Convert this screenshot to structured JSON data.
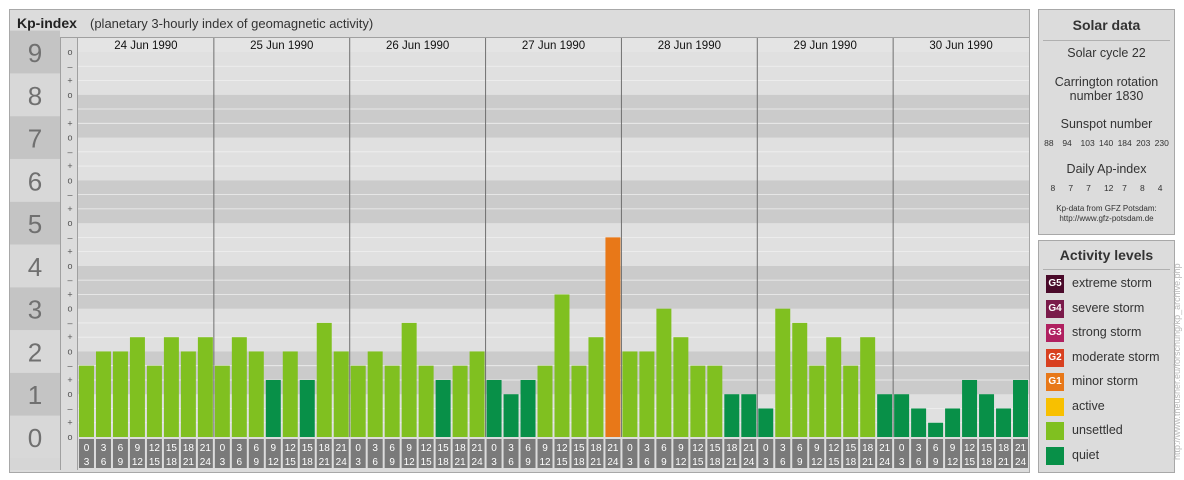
{
  "header": {
    "title": "Kp-index",
    "subtitle": "(planetary 3-hourly index of geomagnetic activity)"
  },
  "side": {
    "solar_title": "Solar data",
    "cycle": "Solar cycle 22",
    "carrington_line1": "Carrington rotation",
    "carrington_line2": "number 1830",
    "sunspot_title": "Sunspot number",
    "sunspot_values": "88  94  103 140 184 203 230",
    "ap_title": "Daily Ap-index",
    "ap_values": "8   7   7   12  7   8   4",
    "credit_line1": "Kp-data from GFZ Potsdam:",
    "credit_line2": "http://www.gfz-potsdam.de",
    "activity_title": "Activity levels",
    "levels": [
      {
        "code": "G5",
        "label": "extreme storm",
        "color": "#4a0a2a"
      },
      {
        "code": "G4",
        "label": "severe storm",
        "color": "#7a1a4a"
      },
      {
        "code": "G3",
        "label": "strong storm",
        "color": "#b02060"
      },
      {
        "code": "G2",
        "label": "moderate storm",
        "color": "#d84020"
      },
      {
        "code": "G1",
        "label": "minor storm",
        "color": "#e87818"
      },
      {
        "code": "",
        "label": "active",
        "color": "#f8c000"
      },
      {
        "code": "",
        "label": "unsettled",
        "color": "#80c020"
      },
      {
        "code": "",
        "label": "quiet",
        "color": "#089048"
      }
    ]
  },
  "watermark": "http://www.theusner.eu/forschung/kp_archive.php",
  "chart_data": {
    "type": "bar",
    "ylim": [
      0,
      9
    ],
    "y_ticks": [
      "0",
      "1",
      "2",
      "3",
      "4",
      "5",
      "6",
      "7",
      "8",
      "9"
    ],
    "minor_marks": [
      "o",
      "+",
      "-"
    ],
    "days": [
      "24 Jun 1990",
      "25 Jun 1990",
      "26 Jun 1990",
      "27 Jun 1990",
      "28 Jun 1990",
      "29 Jun 1990",
      "30 Jun 1990"
    ],
    "interval_start": [
      "0",
      "3",
      "6",
      "9",
      "12",
      "15",
      "18",
      "21"
    ],
    "interval_end": [
      "3",
      "6",
      "9",
      "12",
      "15",
      "18",
      "21",
      "24"
    ],
    "values": [
      1.667,
      2.0,
      2.0,
      2.333,
      1.667,
      2.333,
      2.0,
      2.333,
      1.667,
      2.333,
      2.0,
      1.333,
      2.0,
      1.333,
      2.667,
      2.0,
      1.667,
      2.0,
      1.667,
      2.667,
      1.667,
      1.333,
      1.667,
      2.0,
      1.333,
      1.0,
      1.333,
      1.667,
      3.333,
      1.667,
      2.333,
      4.667,
      2.0,
      2.0,
      3.0,
      2.333,
      1.667,
      1.667,
      1.0,
      1.0,
      0.667,
      3.0,
      2.667,
      1.667,
      2.333,
      1.667,
      2.333,
      1.0,
      1.0,
      0.667,
      0.333,
      0.667,
      1.333,
      1.0,
      0.667,
      1.333
    ],
    "colors": {
      "quiet": "#089048",
      "unsettled": "#80c020",
      "active": "#f8c000",
      "minor": "#e87818"
    }
  }
}
